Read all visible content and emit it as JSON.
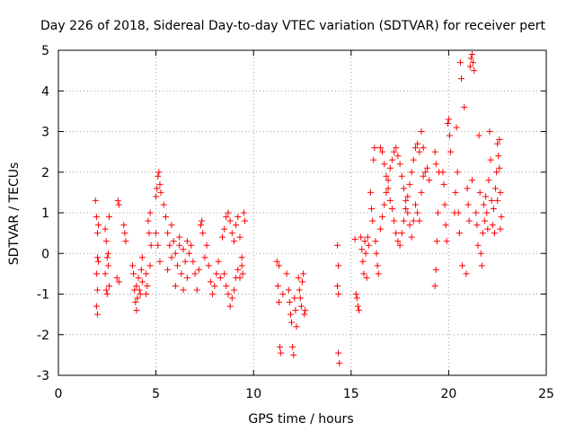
{
  "chart_data": {
    "type": "scatter",
    "title": "Day 226 of 2018, Sidereal Day-to-day VTEC variation (SDTVAR) for receiver pert",
    "xlabel": "GPS time / hours",
    "ylabel": "SDTVAR / TECUs",
    "xlim": [
      0,
      25
    ],
    "ylim": [
      -3,
      5
    ],
    "xticks": [
      0,
      5,
      10,
      15,
      20,
      25
    ],
    "yticks": [
      -3,
      -2,
      -1,
      0,
      1,
      2,
      3,
      4,
      5
    ],
    "xtick_labels": [
      "0",
      "5",
      "10",
      "15",
      "20",
      "25"
    ],
    "ytick_labels": [
      "-3",
      "-2",
      "-1",
      "0",
      "1",
      "2",
      "3",
      "4",
      "5"
    ],
    "grid": true,
    "marker": "+",
    "series": [
      {
        "name": "SDTVAR",
        "color": "#ff0000",
        "points": [
          [
            1.9,
            1.3
          ],
          [
            1.95,
            0.9
          ],
          [
            2.0,
            0.5
          ],
          [
            2.0,
            -0.1
          ],
          [
            1.95,
            -0.5
          ],
          [
            2.0,
            -0.9
          ],
          [
            1.95,
            -1.3
          ],
          [
            2.0,
            -1.5
          ],
          [
            2.05,
            0.7
          ],
          [
            2.05,
            -0.2
          ],
          [
            2.4,
            0.6
          ],
          [
            2.45,
            0.3
          ],
          [
            2.5,
            -0.1
          ],
          [
            2.55,
            -0.3
          ],
          [
            2.45,
            -0.9
          ],
          [
            2.5,
            -1.0
          ],
          [
            2.6,
            0.9
          ],
          [
            2.55,
            0.0
          ],
          [
            2.4,
            -0.5
          ],
          [
            2.6,
            -0.8
          ],
          [
            3.05,
            1.3
          ],
          [
            3.1,
            1.2
          ],
          [
            3.0,
            -0.6
          ],
          [
            3.1,
            -0.7
          ],
          [
            3.35,
            0.7
          ],
          [
            3.4,
            0.5
          ],
          [
            3.45,
            0.3
          ],
          [
            3.8,
            -0.3
          ],
          [
            3.85,
            -0.5
          ],
          [
            3.9,
            -0.9
          ],
          [
            3.95,
            -1.2
          ],
          [
            4.0,
            -1.4
          ],
          [
            4.05,
            -1.1
          ],
          [
            4.0,
            -0.8
          ],
          [
            4.1,
            -0.6
          ],
          [
            4.15,
            -0.9
          ],
          [
            4.2,
            -1.0
          ],
          [
            4.25,
            -0.4
          ],
          [
            4.3,
            -0.7
          ],
          [
            4.3,
            -0.1
          ],
          [
            4.5,
            -0.5
          ],
          [
            4.5,
            -1.0
          ],
          [
            4.55,
            -0.8
          ],
          [
            4.6,
            0.8
          ],
          [
            4.65,
            0.5
          ],
          [
            4.7,
            1.0
          ],
          [
            4.7,
            -0.3
          ],
          [
            4.75,
            0.2
          ],
          [
            5.0,
            1.4
          ],
          [
            5.05,
            1.6
          ],
          [
            5.1,
            1.9
          ],
          [
            5.15,
            2.0
          ],
          [
            5.2,
            1.7
          ],
          [
            5.25,
            1.5
          ],
          [
            5.0,
            0.5
          ],
          [
            5.1,
            0.2
          ],
          [
            5.2,
            -0.2
          ],
          [
            5.4,
            1.2
          ],
          [
            5.5,
            0.9
          ],
          [
            5.6,
            0.5
          ],
          [
            5.7,
            0.2
          ],
          [
            5.8,
            -0.1
          ],
          [
            5.9,
            0.3
          ],
          [
            6.0,
            0.0
          ],
          [
            6.1,
            -0.3
          ],
          [
            6.2,
            0.2
          ],
          [
            6.3,
            -0.5
          ],
          [
            6.4,
            0.1
          ],
          [
            6.5,
            -0.2
          ],
          [
            6.6,
            -0.6
          ],
          [
            6.7,
            0.0
          ],
          [
            5.6,
            -0.4
          ],
          [
            5.8,
            0.7
          ],
          [
            6.0,
            -0.8
          ],
          [
            6.2,
            0.4
          ],
          [
            6.4,
            -0.9
          ],
          [
            6.6,
            0.3
          ],
          [
            6.8,
            0.2
          ],
          [
            6.9,
            -0.2
          ],
          [
            7.0,
            -0.5
          ],
          [
            7.1,
            -0.9
          ],
          [
            7.2,
            -0.4
          ],
          [
            7.3,
            0.7
          ],
          [
            7.35,
            0.8
          ],
          [
            7.4,
            0.5
          ],
          [
            7.5,
            -0.1
          ],
          [
            7.6,
            0.2
          ],
          [
            7.7,
            -0.3
          ],
          [
            7.8,
            -0.7
          ],
          [
            7.9,
            -1.0
          ],
          [
            8.0,
            -0.8
          ],
          [
            8.1,
            -0.5
          ],
          [
            8.2,
            -0.2
          ],
          [
            8.3,
            -0.6
          ],
          [
            8.4,
            0.4
          ],
          [
            8.5,
            0.6
          ],
          [
            8.6,
            0.9
          ],
          [
            8.7,
            1.0
          ],
          [
            8.8,
            0.8
          ],
          [
            8.9,
            0.5
          ],
          [
            9.0,
            0.3
          ],
          [
            9.1,
            0.7
          ],
          [
            9.2,
            0.9
          ],
          [
            9.3,
            0.4
          ],
          [
            9.4,
            -0.1
          ],
          [
            8.5,
            -0.5
          ],
          [
            8.6,
            -0.8
          ],
          [
            8.7,
            -1.0
          ],
          [
            8.8,
            -1.3
          ],
          [
            8.9,
            -1.1
          ],
          [
            9.0,
            -0.9
          ],
          [
            9.1,
            -0.6
          ],
          [
            9.2,
            -0.4
          ],
          [
            9.3,
            -0.6
          ],
          [
            9.4,
            -0.3
          ],
          [
            9.45,
            -0.5
          ],
          [
            9.5,
            1.0
          ],
          [
            9.55,
            0.8
          ],
          [
            11.2,
            -0.2
          ],
          [
            11.3,
            -0.3
          ],
          [
            11.25,
            -0.8
          ],
          [
            11.3,
            -1.2
          ],
          [
            11.35,
            -2.3
          ],
          [
            11.4,
            -2.45
          ],
          [
            11.5,
            -1.0
          ],
          [
            11.7,
            -0.5
          ],
          [
            11.8,
            -0.9
          ],
          [
            11.85,
            -1.2
          ],
          [
            11.9,
            -1.5
          ],
          [
            11.95,
            -1.7
          ],
          [
            12.0,
            -2.3
          ],
          [
            12.05,
            -2.5
          ],
          [
            12.1,
            -1.1
          ],
          [
            12.15,
            -1.4
          ],
          [
            12.2,
            -1.8
          ],
          [
            12.3,
            -0.6
          ],
          [
            12.35,
            -0.9
          ],
          [
            12.4,
            -1.1
          ],
          [
            12.45,
            -1.3
          ],
          [
            12.5,
            -0.7
          ],
          [
            12.55,
            -0.5
          ],
          [
            12.6,
            -1.5
          ],
          [
            12.65,
            -1.4
          ],
          [
            14.3,
            0.2
          ],
          [
            14.35,
            -0.3
          ],
          [
            14.3,
            -0.8
          ],
          [
            14.35,
            -1.0
          ],
          [
            14.35,
            -2.45
          ],
          [
            14.4,
            -2.7
          ],
          [
            15.2,
            0.35
          ],
          [
            15.3,
            -1.1
          ],
          [
            15.35,
            -1.3
          ],
          [
            15.4,
            -1.4
          ],
          [
            15.25,
            -1.0
          ],
          [
            15.5,
            0.4
          ],
          [
            15.55,
            0.1
          ],
          [
            15.6,
            -0.2
          ],
          [
            15.65,
            -0.5
          ],
          [
            15.7,
            0.3
          ],
          [
            15.75,
            0.0
          ],
          [
            15.8,
            -0.6
          ],
          [
            15.85,
            0.4
          ],
          [
            15.9,
            0.2
          ],
          [
            16.0,
            1.5
          ],
          [
            16.05,
            1.1
          ],
          [
            16.1,
            0.8
          ],
          [
            16.15,
            2.3
          ],
          [
            16.2,
            2.6
          ],
          [
            16.25,
            0.3
          ],
          [
            16.3,
            0.0
          ],
          [
            16.35,
            -0.3
          ],
          [
            16.4,
            -0.5
          ],
          [
            16.5,
            2.6
          ],
          [
            16.6,
            2.5
          ],
          [
            16.7,
            2.2
          ],
          [
            16.8,
            1.9
          ],
          [
            16.9,
            1.6
          ],
          [
            17.0,
            1.3
          ],
          [
            17.1,
            1.1
          ],
          [
            17.2,
            0.8
          ],
          [
            17.3,
            0.5
          ],
          [
            17.4,
            0.3
          ],
          [
            16.5,
            0.6
          ],
          [
            16.6,
            0.9
          ],
          [
            16.7,
            1.2
          ],
          [
            16.8,
            1.5
          ],
          [
            16.9,
            1.8
          ],
          [
            17.0,
            2.1
          ],
          [
            17.1,
            2.3
          ],
          [
            17.2,
            2.5
          ],
          [
            17.3,
            2.6
          ],
          [
            17.4,
            2.4
          ],
          [
            17.5,
            2.2
          ],
          [
            17.6,
            1.9
          ],
          [
            17.7,
            1.6
          ],
          [
            17.8,
            1.3
          ],
          [
            17.9,
            1.0
          ],
          [
            18.0,
            0.7
          ],
          [
            18.1,
            0.4
          ],
          [
            18.2,
            0.8
          ],
          [
            18.3,
            1.2
          ],
          [
            17.5,
            0.2
          ],
          [
            17.6,
            0.5
          ],
          [
            17.7,
            0.8
          ],
          [
            17.8,
            1.1
          ],
          [
            17.9,
            1.4
          ],
          [
            18.0,
            1.7
          ],
          [
            18.1,
            2.0
          ],
          [
            18.2,
            2.3
          ],
          [
            18.3,
            2.6
          ],
          [
            18.4,
            2.7
          ],
          [
            18.5,
            2.5
          ],
          [
            18.4,
            1.0
          ],
          [
            18.5,
            0.8
          ],
          [
            18.6,
            1.5
          ],
          [
            18.7,
            1.9
          ],
          [
            18.8,
            2.0
          ],
          [
            18.9,
            2.1
          ],
          [
            19.0,
            1.8
          ],
          [
            18.6,
            3.0
          ],
          [
            18.7,
            2.6
          ],
          [
            19.3,
            2.5
          ],
          [
            19.35,
            2.2
          ],
          [
            19.4,
            0.3
          ],
          [
            19.35,
            -0.4
          ],
          [
            19.3,
            -0.8
          ],
          [
            19.45,
            1.0
          ],
          [
            19.5,
            2.0
          ],
          [
            19.7,
            2.0
          ],
          [
            19.75,
            1.7
          ],
          [
            19.8,
            1.2
          ],
          [
            19.85,
            0.7
          ],
          [
            19.9,
            0.3
          ],
          [
            19.95,
            3.2
          ],
          [
            20.0,
            3.3
          ],
          [
            20.05,
            2.9
          ],
          [
            20.1,
            2.5
          ],
          [
            20.3,
            1.0
          ],
          [
            20.35,
            1.5
          ],
          [
            20.4,
            3.1
          ],
          [
            20.45,
            2.0
          ],
          [
            20.5,
            1.0
          ],
          [
            20.55,
            0.5
          ],
          [
            20.6,
            4.7
          ],
          [
            20.65,
            4.3
          ],
          [
            20.7,
            -0.3
          ],
          [
            20.8,
            3.6
          ],
          [
            20.9,
            -0.5
          ],
          [
            20.95,
            1.6
          ],
          [
            21.0,
            1.2
          ],
          [
            21.05,
            0.8
          ],
          [
            21.1,
            4.6
          ],
          [
            21.15,
            4.8
          ],
          [
            21.2,
            4.9
          ],
          [
            21.25,
            4.7
          ],
          [
            21.3,
            4.5
          ],
          [
            21.2,
            1.8
          ],
          [
            21.4,
            1.0
          ],
          [
            21.45,
            0.7
          ],
          [
            21.5,
            0.2
          ],
          [
            21.55,
            2.9
          ],
          [
            21.6,
            1.5
          ],
          [
            21.65,
            0.0
          ],
          [
            21.7,
            -0.3
          ],
          [
            21.75,
            0.5
          ],
          [
            21.8,
            1.2
          ],
          [
            21.85,
            0.8
          ],
          [
            21.9,
            1.4
          ],
          [
            21.95,
            1.0
          ],
          [
            22.0,
            0.6
          ],
          [
            22.05,
            1.8
          ],
          [
            22.1,
            3.0
          ],
          [
            22.15,
            2.3
          ],
          [
            22.2,
            1.3
          ],
          [
            22.25,
            0.7
          ],
          [
            22.3,
            1.1
          ],
          [
            22.35,
            0.5
          ],
          [
            22.4,
            1.6
          ],
          [
            22.45,
            2.0
          ],
          [
            22.5,
            2.7
          ],
          [
            22.55,
            2.4
          ],
          [
            22.6,
            2.8
          ],
          [
            22.65,
            1.5
          ],
          [
            22.7,
            0.9
          ],
          [
            22.65,
            0.6
          ],
          [
            22.5,
            1.3
          ],
          [
            22.6,
            2.1
          ]
        ]
      }
    ]
  }
}
